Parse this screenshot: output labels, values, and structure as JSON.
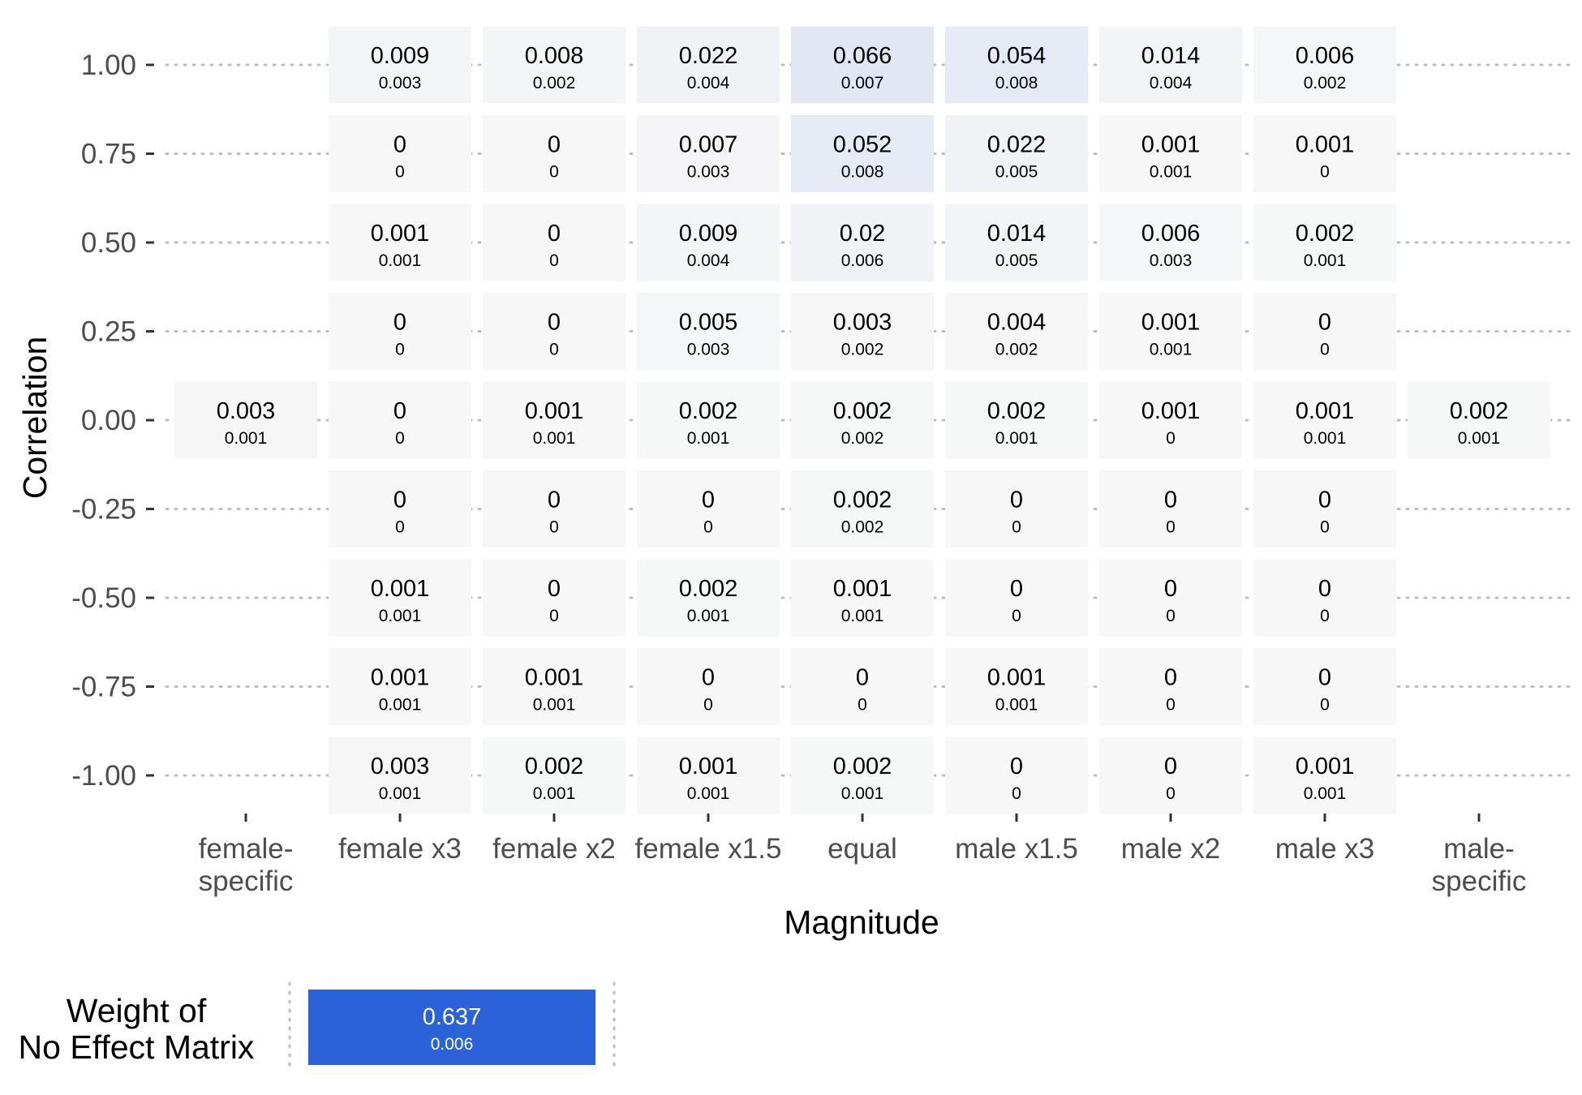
{
  "chart_data": {
    "type": "heatmap",
    "xlabel": "Magnitude",
    "ylabel": "Correlation",
    "x_categories": [
      "female-\nspecific",
      "female x3",
      "female x2",
      "female x1.5",
      "equal",
      "male x1.5",
      "male x2",
      "male x3",
      "male-\nspecific"
    ],
    "y_categories": [
      "1.00",
      "0.75",
      "0.50",
      "0.25",
      "0.00",
      "-0.25",
      "-0.50",
      "-0.75",
      "-1.00"
    ],
    "grid": "dotted horizontal guide lines at each correlation level where no cell is present",
    "color_scale": {
      "low": "#F7F7F7",
      "high": "#2B61D9",
      "max_value": 0.637
    },
    "values": [
      [
        null,
        "0.009",
        "0.008",
        "0.022",
        "0.066",
        "0.054",
        "0.014",
        "0.006",
        null
      ],
      [
        null,
        "0",
        "0",
        "0.007",
        "0.052",
        "0.022",
        "0.001",
        "0.001",
        null
      ],
      [
        null,
        "0.001",
        "0",
        "0.009",
        "0.02",
        "0.014",
        "0.006",
        "0.002",
        null
      ],
      [
        null,
        "0",
        "0",
        "0.005",
        "0.003",
        "0.004",
        "0.001",
        "0",
        null
      ],
      [
        "0.003",
        "0",
        "0.001",
        "0.002",
        "0.002",
        "0.002",
        "0.001",
        "0.001",
        "0.002"
      ],
      [
        null,
        "0",
        "0",
        "0",
        "0.002",
        "0",
        "0",
        "0",
        null
      ],
      [
        null,
        "0.001",
        "0",
        "0.002",
        "0.001",
        "0",
        "0",
        "0",
        null
      ],
      [
        null,
        "0.001",
        "0.001",
        "0",
        "0",
        "0.001",
        "0",
        "0",
        null
      ],
      [
        null,
        "0.003",
        "0.002",
        "0.001",
        "0.002",
        "0",
        "0",
        "0.001",
        null
      ]
    ],
    "std_errors": [
      [
        null,
        "0.003",
        "0.002",
        "0.004",
        "0.007",
        "0.008",
        "0.004",
        "0.002",
        null
      ],
      [
        null,
        "0",
        "0",
        "0.003",
        "0.008",
        "0.005",
        "0.001",
        "0",
        null
      ],
      [
        null,
        "0.001",
        "0",
        "0.004",
        "0.006",
        "0.005",
        "0.003",
        "0.001",
        null
      ],
      [
        null,
        "0",
        "0",
        "0.003",
        "0.002",
        "0.002",
        "0.001",
        "0",
        null
      ],
      [
        "0.001",
        "0",
        "0.001",
        "0.001",
        "0.002",
        "0.001",
        "0",
        "0.001",
        "0.001"
      ],
      [
        null,
        "0",
        "0",
        "0",
        "0.002",
        "0",
        "0",
        "0",
        null
      ],
      [
        null,
        "0.001",
        "0",
        "0.001",
        "0.001",
        "0",
        "0",
        "0",
        null
      ],
      [
        null,
        "0.001",
        "0.001",
        "0",
        "0",
        "0.001",
        "0",
        "0",
        null
      ],
      [
        null,
        "0.001",
        "0.001",
        "0.001",
        "0.001",
        "0",
        "0",
        "0.001",
        null
      ]
    ],
    "no_effect": {
      "label": "Weight of\nNo Effect Matrix",
      "value": "0.637",
      "std_error": "0.006",
      "color": "#2B61D9"
    }
  }
}
